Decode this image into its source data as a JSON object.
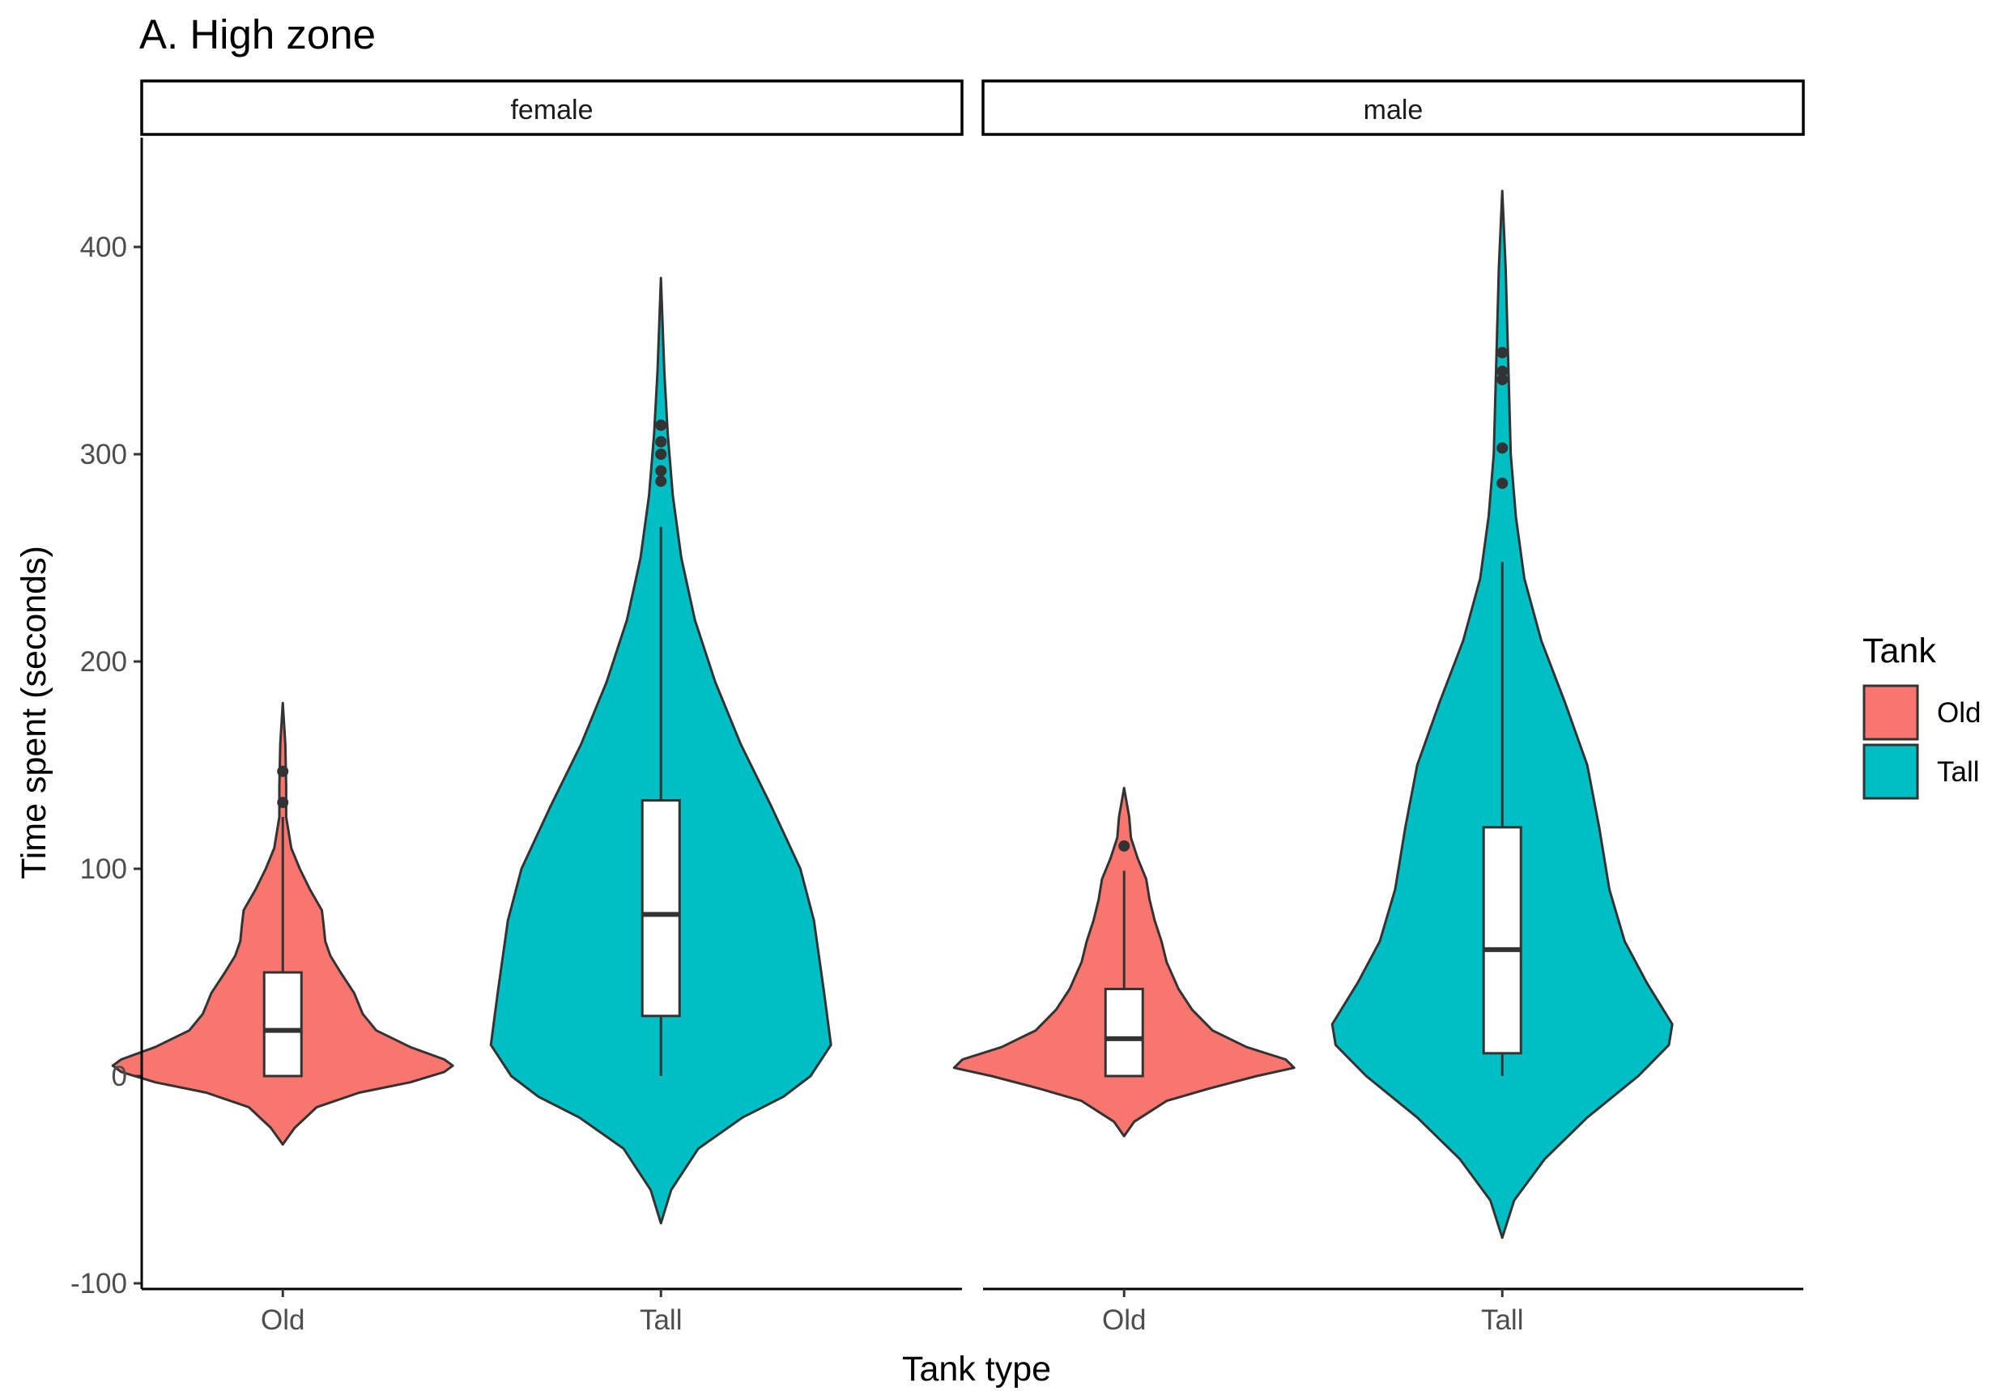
{
  "chart_data": {
    "type": "violin",
    "title": "A. High zone",
    "xlabel": "Tank type",
    "ylabel": "Time spent (seconds)",
    "ylim": [
      -100,
      450
    ],
    "y_ticks": [
      -100,
      0,
      100,
      200,
      300,
      400
    ],
    "categories": [
      "Old",
      "Tall"
    ],
    "grid": false,
    "legend": {
      "title": "Tank",
      "placement": "right",
      "entries": [
        {
          "label": "Old",
          "color": "#F8766D"
        },
        {
          "label": "Tall",
          "color": "#00BFC4"
        }
      ]
    },
    "facets": [
      {
        "label": "female",
        "groups": [
          {
            "category": "Old",
            "color": "#F8766D",
            "box": {
              "min": 0,
              "q1": 0,
              "median": 22,
              "q3": 50,
              "max": 125
            },
            "outliers": [
              132,
              147
            ],
            "violin_range": [
              -33,
              180
            ],
            "violin_profile": [
              [
                -33,
                0.0
              ],
              [
                -25,
                0.07
              ],
              [
                -15,
                0.2
              ],
              [
                -8,
                0.45
              ],
              [
                -3,
                0.75
              ],
              [
                2,
                0.95
              ],
              [
                5,
                1.0
              ],
              [
                8,
                0.95
              ],
              [
                14,
                0.75
              ],
              [
                22,
                0.55
              ],
              [
                30,
                0.47
              ],
              [
                40,
                0.42
              ],
              [
                50,
                0.34
              ],
              [
                58,
                0.28
              ],
              [
                65,
                0.25
              ],
              [
                73,
                0.24
              ],
              [
                80,
                0.23
              ],
              [
                90,
                0.16
              ],
              [
                100,
                0.1
              ],
              [
                110,
                0.05
              ],
              [
                125,
                0.02
              ],
              [
                140,
                0.02
              ],
              [
                160,
                0.015
              ],
              [
                180,
                0.0
              ]
            ]
          },
          {
            "category": "Tall",
            "color": "#00BFC4",
            "box": {
              "min": 0,
              "q1": 29,
              "median": 78,
              "q3": 133,
              "max": 265
            },
            "outliers": [
              287,
              292,
              300,
              306,
              314
            ],
            "violin_range": [
              -71,
              385
            ],
            "violin_profile": [
              [
                -71,
                0.0
              ],
              [
                -55,
                0.06
              ],
              [
                -35,
                0.22
              ],
              [
                -20,
                0.48
              ],
              [
                -10,
                0.72
              ],
              [
                0,
                0.88
              ],
              [
                15,
                1.0
              ],
              [
                40,
                0.96
              ],
              [
                75,
                0.9
              ],
              [
                100,
                0.82
              ],
              [
                130,
                0.65
              ],
              [
                160,
                0.47
              ],
              [
                190,
                0.32
              ],
              [
                220,
                0.2
              ],
              [
                250,
                0.12
              ],
              [
                280,
                0.07
              ],
              [
                310,
                0.04
              ],
              [
                340,
                0.02
              ],
              [
                385,
                0.0
              ]
            ]
          }
        ]
      },
      {
        "label": "male",
        "groups": [
          {
            "category": "Old",
            "color": "#F8766D",
            "box": {
              "min": 0,
              "q1": 0,
              "median": 18,
              "q3": 42,
              "max": 99
            },
            "outliers": [
              111
            ],
            "violin_range": [
              -29,
              139
            ],
            "violin_profile": [
              [
                -29,
                0.0
              ],
              [
                -22,
                0.06
              ],
              [
                -12,
                0.25
              ],
              [
                -6,
                0.5
              ],
              [
                0,
                0.78
              ],
              [
                4,
                1.0
              ],
              [
                8,
                0.95
              ],
              [
                14,
                0.72
              ],
              [
                22,
                0.52
              ],
              [
                32,
                0.4
              ],
              [
                42,
                0.32
              ],
              [
                55,
                0.25
              ],
              [
                65,
                0.22
              ],
              [
                75,
                0.18
              ],
              [
                85,
                0.15
              ],
              [
                95,
                0.13
              ],
              [
                105,
                0.08
              ],
              [
                115,
                0.04
              ],
              [
                125,
                0.03
              ],
              [
                139,
                0.0
              ]
            ]
          },
          {
            "category": "Tall",
            "color": "#00BFC4",
            "box": {
              "min": 0,
              "q1": 11,
              "median": 61,
              "q3": 120,
              "max": 248
            },
            "outliers": [
              286,
              303,
              336,
              340,
              349
            ],
            "violin_range": [
              -78,
              427
            ],
            "violin_profile": [
              [
                -78,
                0.0
              ],
              [
                -60,
                0.07
              ],
              [
                -40,
                0.25
              ],
              [
                -20,
                0.5
              ],
              [
                0,
                0.8
              ],
              [
                15,
                0.98
              ],
              [
                25,
                1.0
              ],
              [
                45,
                0.85
              ],
              [
                65,
                0.72
              ],
              [
                90,
                0.63
              ],
              [
                120,
                0.57
              ],
              [
                150,
                0.5
              ],
              [
                180,
                0.37
              ],
              [
                210,
                0.23
              ],
              [
                240,
                0.13
              ],
              [
                270,
                0.08
              ],
              [
                300,
                0.05
              ],
              [
                330,
                0.04
              ],
              [
                360,
                0.03
              ],
              [
                390,
                0.02
              ],
              [
                427,
                0.0
              ]
            ]
          }
        ]
      }
    ]
  }
}
